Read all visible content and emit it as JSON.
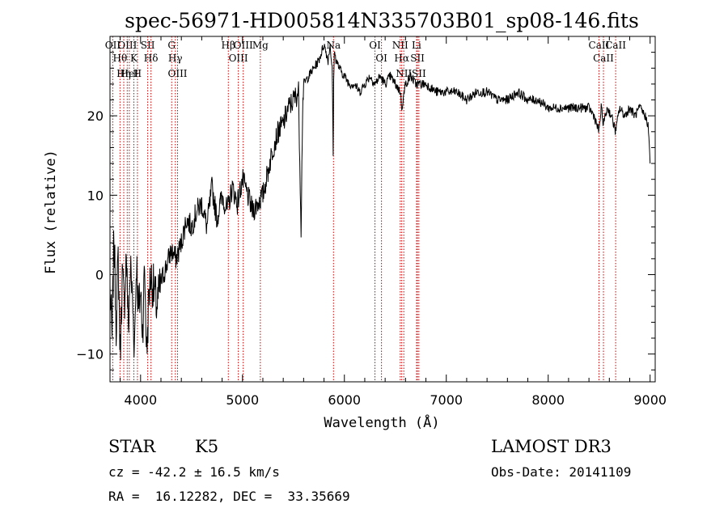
{
  "chart_data": {
    "type": "line",
    "title": "spec-56971-HD005814N335703B01_sp08-146.fits",
    "xlabel": "Wavelength (Å)",
    "ylabel": "Flux (relative)",
    "xlim": [
      3700,
      9050
    ],
    "ylim": [
      -13.5,
      30
    ],
    "xticks": [
      4000,
      5000,
      6000,
      7000,
      8000,
      9000
    ],
    "yticks": [
      -10,
      0,
      10,
      20
    ],
    "series": [
      {
        "name": "spectrum",
        "x": [
          3700,
          3720,
          3740,
          3760,
          3780,
          3800,
          3820,
          3840,
          3860,
          3880,
          3900,
          3920,
          3940,
          3960,
          3980,
          4000,
          4020,
          4040,
          4060,
          4080,
          4100,
          4130,
          4160,
          4200,
          4250,
          4300,
          4350,
          4400,
          4450,
          4500,
          4550,
          4600,
          4650,
          4700,
          4750,
          4800,
          4850,
          4900,
          4950,
          5000,
          5050,
          5100,
          5150,
          5200,
          5250,
          5300,
          5350,
          5400,
          5450,
          5500,
          5550,
          5575,
          5590,
          5600,
          5650,
          5700,
          5750,
          5800,
          5820,
          5840,
          5860,
          5880,
          5890,
          5895,
          5900,
          5920,
          5950,
          6000,
          6050,
          6100,
          6150,
          6200,
          6250,
          6300,
          6350,
          6400,
          6450,
          6500,
          6550,
          6563,
          6600,
          6650,
          6700,
          6750,
          6800,
          6900,
          7000,
          7100,
          7200,
          7300,
          7400,
          7500,
          7600,
          7700,
          7800,
          7900,
          8000,
          8100,
          8200,
          8300,
          8400,
          8450,
          8498,
          8520,
          8542,
          8580,
          8620,
          8662,
          8700,
          8750,
          8800,
          8850,
          8900,
          8950,
          8980,
          9000
        ],
        "y": [
          -2,
          -8,
          5,
          -6,
          2,
          -10,
          0,
          -4,
          3,
          -7,
          1,
          -3,
          -9,
          2,
          -5,
          -2,
          -7,
          1,
          -10,
          -3,
          0,
          -2,
          -4,
          -1,
          1,
          3,
          2,
          4,
          7,
          6,
          8,
          9,
          6,
          11,
          7,
          10,
          8,
          11,
          9,
          12,
          10,
          8,
          9,
          10,
          13,
          16,
          18,
          19,
          21,
          22,
          23,
          6,
          21,
          24,
          25,
          26,
          27,
          29,
          28,
          27,
          29,
          26,
          15,
          24,
          28,
          27,
          26,
          25,
          24,
          24,
          23,
          24,
          25,
          24,
          25,
          24,
          25,
          24,
          23,
          21,
          24,
          25,
          24,
          24,
          24,
          23,
          23,
          23,
          22,
          23,
          23,
          22,
          22,
          23,
          22,
          22,
          21,
          21,
          21,
          21,
          21,
          20,
          18,
          21,
          19,
          21,
          20,
          18,
          21,
          20,
          21,
          20,
          21,
          20,
          19,
          14
        ],
        "color": "#000000"
      }
    ],
    "lines": [
      {
        "name": "Hθ",
        "x": 3798
      },
      {
        "name": "OII",
        "x": 3727
      },
      {
        "name": "OIII",
        "x": 3869
      },
      {
        "name": "K",
        "x": 3934
      },
      {
        "name": "HeI",
        "x": 3889
      },
      {
        "name": "Hη",
        "x": 3835
      },
      {
        "name": "H",
        "x": 3969
      },
      {
        "name": "SII",
        "x": 4070
      },
      {
        "name": "Hδ",
        "x": 4102
      },
      {
        "name": "OIII",
        "x": 4363
      },
      {
        "name": "Hγ",
        "x": 4341
      },
      {
        "name": "G",
        "x": 4305
      },
      {
        "name": "Hβ",
        "x": 4861
      },
      {
        "name": "OIII",
        "x": 4959
      },
      {
        "name": "OIII",
        "x": 5007
      },
      {
        "name": "Mg",
        "x": 5175
      },
      {
        "name": "Na",
        "x": 5893
      },
      {
        "name": "OI",
        "x": 6300
      },
      {
        "name": "OI",
        "x": 6364
      },
      {
        "name": "Hα",
        "x": 6563
      },
      {
        "name": "NII",
        "x": 6548
      },
      {
        "name": "NII",
        "x": 6583
      },
      {
        "name": "SII",
        "x": 6717
      },
      {
        "name": "SII",
        "x": 6731
      },
      {
        "name": "Li",
        "x": 6708
      },
      {
        "name": "CaII",
        "x": 8498
      },
      {
        "name": "CaII",
        "x": 8542
      },
      {
        "name": "CaII",
        "x": 8662
      }
    ]
  },
  "info": {
    "object_class": "STAR",
    "subclass": "K5",
    "survey": "LAMOST DR3",
    "redshift": "cz = -42.2 ± 16.5 km/s",
    "obs_date": "Obs-Date: 20141109",
    "coords": "RA =  16.12282, DEC =  33.35669"
  },
  "colors": {
    "line_marker": "#cc0000",
    "spectrum": "#000000",
    "axes": "#000000"
  }
}
